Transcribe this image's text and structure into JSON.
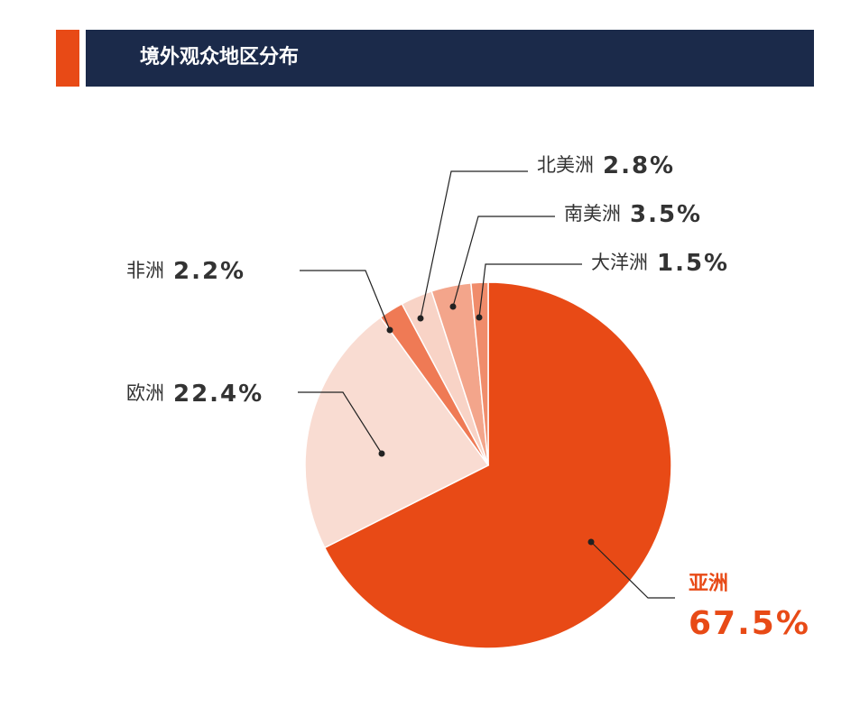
{
  "chart_data": {
    "type": "pie",
    "title": "境外观众地区分布",
    "categories": [
      "亚洲",
      "欧洲",
      "非洲",
      "北美洲",
      "南美洲",
      "大洋洲"
    ],
    "values": [
      67.5,
      22.4,
      2.2,
      2.8,
      3.5,
      1.5
    ],
    "value_labels": [
      "67.5%",
      "22.4%",
      "2.2%",
      "2.8%",
      "3.5%",
      "1.5%"
    ],
    "colors": [
      "#e84a16",
      "#f9dcd2",
      "#ef7a55",
      "#f8d3c6",
      "#f3a58b",
      "#f08c6b"
    ]
  }
}
